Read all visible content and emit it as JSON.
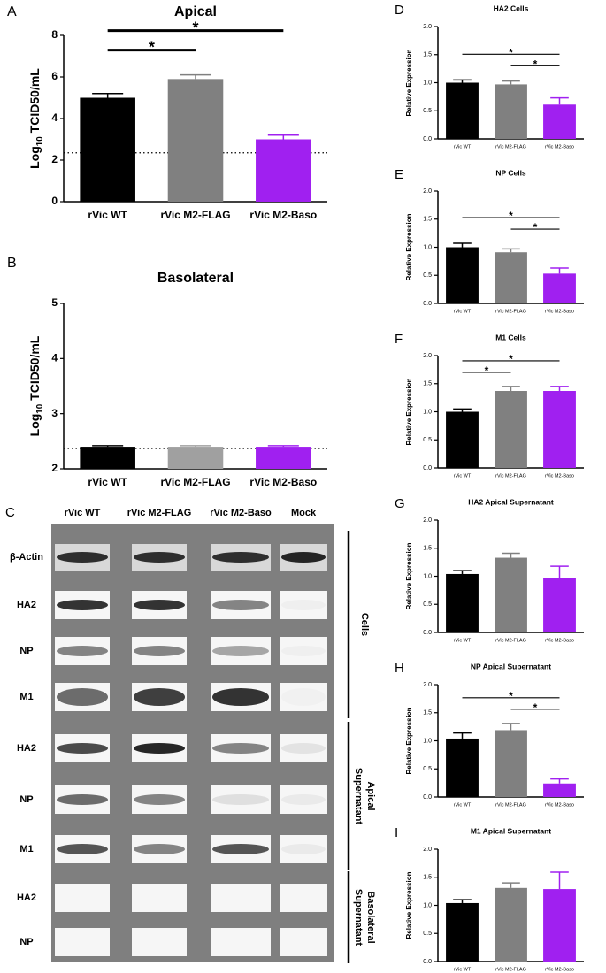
{
  "chart_data": [
    {
      "type": "bar",
      "panel": "A",
      "title": "Apical",
      "y_label": [
        "Log",
        "10",
        "TCID50/mL"
      ],
      "categories": [
        "rVic WT",
        "rVic M2-FLAG",
        "rVic M2-Baso"
      ],
      "values": [
        5.0,
        5.9,
        3.0
      ],
      "errors": [
        0.2,
        0.2,
        0.2
      ],
      "colors": [
        "#000000",
        "#808080",
        "#a020f0"
      ],
      "ylim": [
        0,
        8
      ],
      "yticks": [
        0,
        2,
        4,
        6,
        8
      ],
      "detection_limit": 2.35,
      "significance": [
        {
          "from": 0,
          "to": 1,
          "label": "*"
        },
        {
          "from": 0,
          "to": 2,
          "label": "*"
        }
      ]
    },
    {
      "type": "bar",
      "panel": "B",
      "title": "Basolateral",
      "y_label": [
        "Log",
        "10",
        "TCID50/mL"
      ],
      "categories": [
        "rVic WT",
        "rVic M2-FLAG",
        "rVic M2-Baso"
      ],
      "values": [
        2.4,
        2.4,
        2.4
      ],
      "errors": [
        0.02,
        0.02,
        0.02
      ],
      "colors": [
        "#000000",
        "#a0a0a0",
        "#a020f0"
      ],
      "ylim": [
        2,
        5
      ],
      "yticks": [
        2,
        3,
        4,
        5
      ],
      "detection_limit": 2.37,
      "significance": []
    },
    {
      "type": "bar",
      "panel": "D",
      "title": "HA2 Cells",
      "y_label": [
        "Relative Expression"
      ],
      "categories": [
        "rVic WT",
        "rVic M2-FLAG",
        "rVic M2-Baso"
      ],
      "values": [
        1.0,
        0.97,
        0.61
      ],
      "errors": [
        0.05,
        0.06,
        0.12
      ],
      "colors": [
        "#000000",
        "#808080",
        "#a020f0"
      ],
      "ylim": [
        0,
        2
      ],
      "yticks": [
        {
          "value": 0,
          "label": "0.0"
        },
        0.5,
        {
          "value": 1,
          "label": "1.0"
        },
        1.5,
        {
          "value": 2,
          "label": "2.0"
        }
      ],
      "significance": [
        {
          "from": 0,
          "to": 2,
          "label": "*"
        },
        {
          "from": 1,
          "to": 2,
          "label": "*"
        }
      ]
    },
    {
      "type": "bar",
      "panel": "E",
      "title": "NP Cells",
      "y_label": [
        "Relative Expression"
      ],
      "categories": [
        "rVic WT",
        "rVic M2-FLAG",
        "rVic M2-Baso"
      ],
      "values": [
        1.0,
        0.91,
        0.53
      ],
      "errors": [
        0.07,
        0.06,
        0.1
      ],
      "colors": [
        "#000000",
        "#808080",
        "#a020f0"
      ],
      "ylim": [
        0,
        2
      ],
      "yticks": [
        {
          "value": 0,
          "label": "0.0"
        },
        0.5,
        {
          "value": 1,
          "label": "1.0"
        },
        1.5,
        {
          "value": 2,
          "label": "2.0"
        }
      ],
      "significance": [
        {
          "from": 0,
          "to": 2,
          "label": "*"
        },
        {
          "from": 1,
          "to": 2,
          "label": "*"
        }
      ]
    },
    {
      "type": "bar",
      "panel": "F",
      "title": "M1 Cells",
      "y_label": [
        "Relative Expression"
      ],
      "categories": [
        "rVic WT",
        "rVic M2-FLAG",
        "rVic M2-Baso"
      ],
      "values": [
        1.0,
        1.37,
        1.37
      ],
      "errors": [
        0.05,
        0.08,
        0.08
      ],
      "colors": [
        "#000000",
        "#808080",
        "#a020f0"
      ],
      "ylim": [
        0,
        2
      ],
      "yticks": [
        {
          "value": 0,
          "label": "0.0"
        },
        0.5,
        {
          "value": 1,
          "label": "1.0"
        },
        1.5,
        {
          "value": 2,
          "label": "2.0"
        }
      ],
      "significance": [
        {
          "from": 0,
          "to": 1,
          "label": "*"
        },
        {
          "from": 0,
          "to": 2,
          "label": "*"
        }
      ]
    },
    {
      "type": "bar",
      "panel": "G",
      "title": "HA2 Apical Supernatant",
      "y_label": [
        "Relative Expression"
      ],
      "categories": [
        "rVic WT",
        "rVic M2-FLAG",
        "rVic M2-Baso"
      ],
      "values": [
        1.04,
        1.33,
        0.97
      ],
      "errors": [
        0.06,
        0.08,
        0.21
      ],
      "colors": [
        "#000000",
        "#808080",
        "#a020f0"
      ],
      "ylim": [
        0,
        2
      ],
      "yticks": [
        {
          "value": 0,
          "label": "0.0"
        },
        0.5,
        {
          "value": 1,
          "label": "1.0"
        },
        1.5,
        {
          "value": 2,
          "label": "2.0"
        }
      ],
      "significance": []
    },
    {
      "type": "bar",
      "panel": "H",
      "title": "NP Apical Supernatant",
      "y_label": [
        "Relative Expression"
      ],
      "categories": [
        "rVic WT",
        "rVic M2-FLAG",
        "rVic M2-Baso"
      ],
      "values": [
        1.04,
        1.19,
        0.24
      ],
      "errors": [
        0.1,
        0.12,
        0.08
      ],
      "colors": [
        "#000000",
        "#808080",
        "#a020f0"
      ],
      "ylim": [
        0,
        2
      ],
      "yticks": [
        {
          "value": 0,
          "label": "0.0"
        },
        0.5,
        {
          "value": 1,
          "label": "1.0"
        },
        1.5,
        {
          "value": 2,
          "label": "2.0"
        }
      ],
      "significance": [
        {
          "from": 0,
          "to": 2,
          "label": "*"
        },
        {
          "from": 1,
          "to": 2,
          "label": "*"
        }
      ]
    },
    {
      "type": "bar",
      "panel": "I",
      "title": "M1 Apical Supernatant",
      "y_label": [
        "Relative Expression"
      ],
      "categories": [
        "rVic WT",
        "rVic M2-FLAG",
        "rVic M2-Baso"
      ],
      "values": [
        1.04,
        1.31,
        1.29
      ],
      "errors": [
        0.06,
        0.09,
        0.3
      ],
      "colors": [
        "#000000",
        "#808080",
        "#a020f0"
      ],
      "ylim": [
        0,
        2
      ],
      "yticks": [
        {
          "value": 0,
          "label": "0.0"
        },
        0.5,
        {
          "value": 1,
          "label": "1.0"
        },
        1.5,
        {
          "value": 2,
          "label": "2.0"
        }
      ],
      "significance": []
    }
  ],
  "blot": {
    "panel": "C",
    "columns": [
      "rVic WT",
      "rVic M2-FLAG",
      "rVic M2-Baso",
      "Mock"
    ],
    "rows": [
      "β-Actin",
      "HA2",
      "NP",
      "M1",
      "HA2",
      "NP",
      "M1",
      "HA2",
      "NP"
    ],
    "groups": [
      {
        "label": [
          "Cells"
        ],
        "rows": [
          0,
          3
        ]
      },
      {
        "label": [
          "Apical",
          "Supernatant"
        ],
        "rows": [
          4,
          6
        ]
      },
      {
        "label": [
          "Basolateral",
          "Supernatant"
        ],
        "rows": [
          7,
          8
        ]
      }
    ]
  }
}
